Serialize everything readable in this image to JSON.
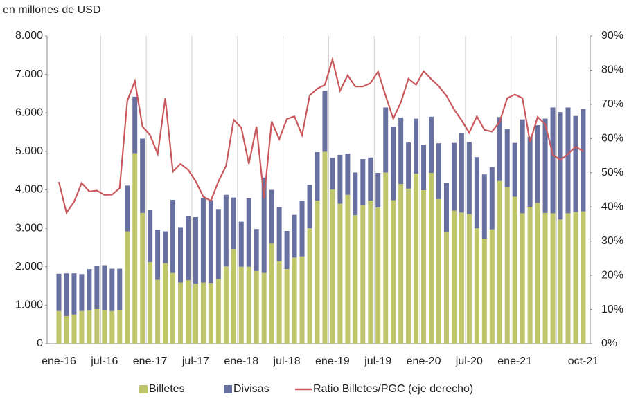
{
  "chart_data": {
    "type": "stacked_bar_line",
    "subtitle": "en millones de USD",
    "categories": [
      "ene-16",
      null,
      null,
      null,
      null,
      null,
      "jul-16",
      null,
      null,
      null,
      null,
      null,
      "ene-17",
      null,
      null,
      null,
      null,
      null,
      "jul-17",
      null,
      null,
      null,
      null,
      null,
      "ene-18",
      null,
      null,
      null,
      null,
      null,
      "jul-18",
      null,
      null,
      null,
      null,
      null,
      "ene-19",
      null,
      null,
      null,
      null,
      null,
      "jul-19",
      null,
      null,
      null,
      null,
      null,
      "ene-20",
      null,
      null,
      null,
      null,
      null,
      "jul-20",
      null,
      null,
      null,
      null,
      null,
      "ene-21",
      null,
      null,
      null,
      null,
      null,
      null,
      null,
      null,
      "oct-21"
    ],
    "series": [
      {
        "name": "Billetes",
        "color": "#bfc56a",
        "values": [
          850,
          720,
          760,
          850,
          870,
          900,
          880,
          850,
          880,
          2920,
          4950,
          3400,
          2120,
          1660,
          2090,
          1840,
          1590,
          1650,
          1560,
          1590,
          1580,
          1680,
          2010,
          2460,
          2000,
          2000,
          1890,
          1840,
          2600,
          2140,
          1940,
          2240,
          2270,
          3000,
          3720,
          4990,
          4010,
          3640,
          3870,
          3340,
          3610,
          3720,
          3540,
          4450,
          3730,
          4150,
          4030,
          4420,
          3990,
          4440,
          3760,
          2900,
          3460,
          3410,
          3370,
          3000,
          2730,
          2970,
          4230,
          4070,
          3820,
          3390,
          3560,
          3660,
          3400,
          3390,
          3230,
          3390,
          3420,
          3440
        ]
      },
      {
        "name": "Divisas",
        "color": "#6870a0",
        "values": [
          970,
          1110,
          1070,
          960,
          1070,
          1130,
          1160,
          1100,
          1070,
          1190,
          1470,
          1930,
          1350,
          1300,
          830,
          1900,
          1440,
          1670,
          1730,
          2190,
          2150,
          1820,
          1860,
          1340,
          1170,
          1780,
          1090,
          2480,
          1400,
          1410,
          990,
          1110,
          1450,
          1130,
          1260,
          1590,
          820,
          1270,
          1070,
          1110,
          1190,
          1120,
          900,
          1690,
          1910,
          1730,
          1200,
          1430,
          1180,
          1460,
          1450,
          1280,
          1760,
          2070,
          1870,
          1850,
          1670,
          1620,
          1660,
          1510,
          1400,
          2440,
          1820,
          2020,
          2450,
          2750,
          2790,
          2750,
          2500,
          2660
        ]
      },
      {
        "name": "Ratio Billetes/PGC (eje derecho)",
        "color": "#c9575b",
        "axis": "y2",
        "values": [
          47.3,
          38.3,
          41.5,
          47,
          44.5,
          44.8,
          43.5,
          43.6,
          45.5,
          71,
          76.8,
          63.5,
          61,
          55.5,
          71.8,
          50.3,
          52.6,
          50.9,
          47.5,
          43,
          41.8,
          47.5,
          52,
          65.5,
          63.2,
          52.6,
          63.5,
          42.5,
          65,
          59.8,
          65.7,
          66.5,
          61,
          72.6,
          74.6,
          75.7,
          83.1,
          74,
          78.5,
          75.2,
          75.2,
          76.2,
          79.6,
          72.5,
          65.8,
          70.6,
          77.5,
          75.7,
          79.7,
          77.4,
          75.3,
          72.5,
          68.5,
          65.3,
          61.7,
          66.5,
          62.5,
          62,
          64.9,
          71.8,
          72.9,
          71.8,
          59,
          66.3,
          64.2,
          55.3,
          53.7,
          55.5,
          57.6,
          56.3
        ]
      }
    ],
    "ylim": [
      0,
      8000
    ],
    "yticks": [
      0,
      {
        "value": 1000,
        "label": "1.000"
      },
      {
        "value": 2000,
        "label": "2.000"
      },
      {
        "value": 3000,
        "label": "3.000"
      },
      {
        "value": 4000,
        "label": "4.000"
      },
      {
        "value": 5000,
        "label": "5.000"
      },
      {
        "value": 6000,
        "label": "6.000"
      },
      {
        "value": 7000,
        "label": "7.000"
      },
      {
        "value": 8000,
        "label": "8.000"
      }
    ],
    "y2lim": [
      0,
      90
    ],
    "y2ticks": [
      {
        "value": 0,
        "label": "0%"
      },
      {
        "value": 10,
        "label": "10%"
      },
      {
        "value": 20,
        "label": "20%"
      },
      {
        "value": 30,
        "label": "30%"
      },
      {
        "value": 40,
        "label": "40%"
      },
      {
        "value": 50,
        "label": "50%"
      },
      {
        "value": 60,
        "label": "60%"
      },
      {
        "value": 70,
        "label": "70%"
      },
      {
        "value": 80,
        "label": "80%"
      },
      {
        "value": 90,
        "label": "90%"
      }
    ],
    "legend": "bottom"
  }
}
